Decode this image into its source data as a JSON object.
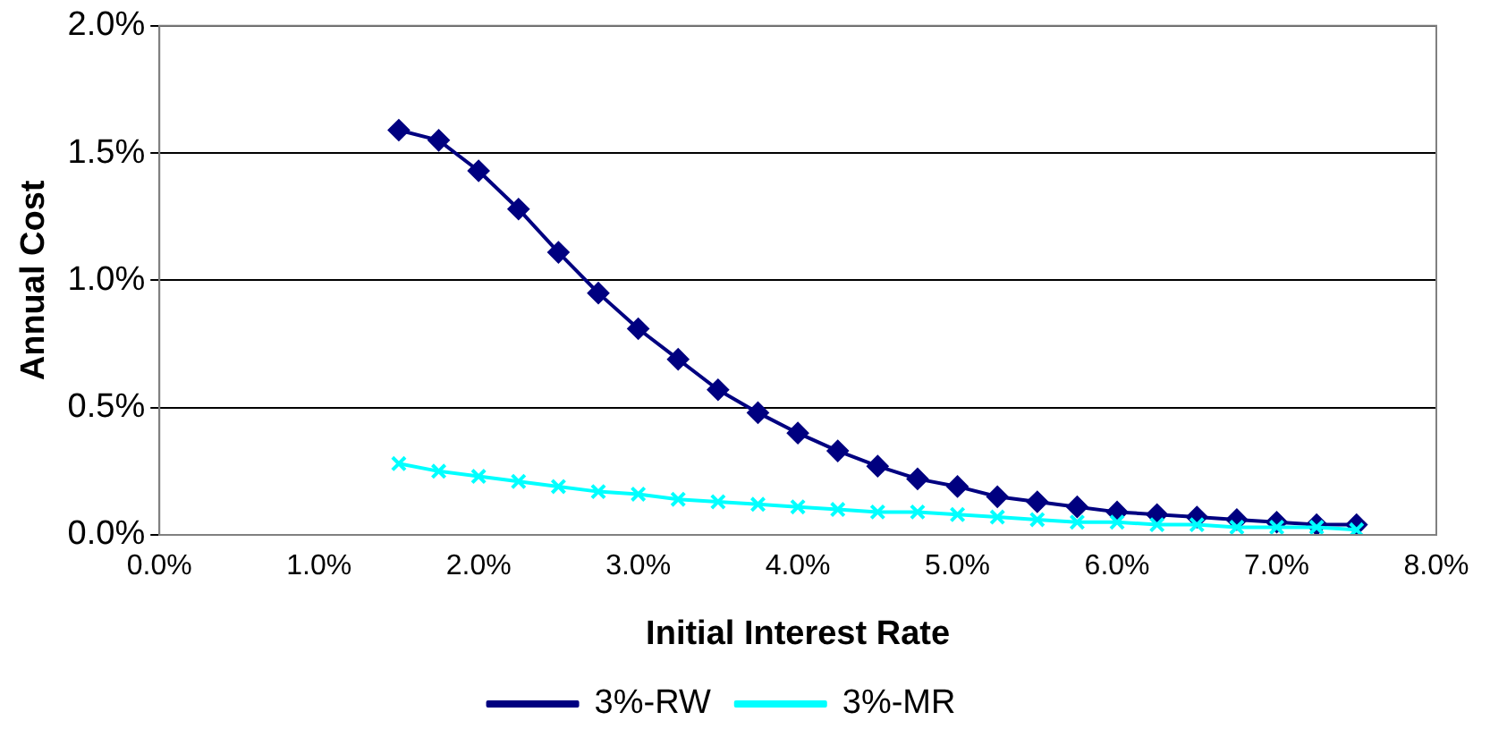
{
  "chart_data": {
    "type": "line",
    "xlabel": "Initial Interest Rate",
    "ylabel": "Annual Cost",
    "x": [
      1.5,
      1.75,
      2.0,
      2.25,
      2.5,
      2.75,
      3.0,
      3.25,
      3.5,
      3.75,
      4.0,
      4.25,
      4.5,
      4.75,
      5.0,
      5.25,
      5.5,
      5.75,
      6.0,
      6.25,
      6.5,
      6.75,
      7.0,
      7.25,
      7.5
    ],
    "series": [
      {
        "name": "3%-RW",
        "color": "#000080",
        "marker": "diamond",
        "values": [
          1.59,
          1.55,
          1.43,
          1.28,
          1.11,
          0.95,
          0.81,
          0.69,
          0.57,
          0.48,
          0.4,
          0.33,
          0.27,
          0.22,
          0.19,
          0.15,
          0.13,
          0.11,
          0.09,
          0.08,
          0.07,
          0.06,
          0.05,
          0.04,
          0.04
        ]
      },
      {
        "name": "3%-MR",
        "color": "#00ffff",
        "marker": "cross",
        "values": [
          0.28,
          0.25,
          0.23,
          0.21,
          0.19,
          0.17,
          0.16,
          0.14,
          0.13,
          0.12,
          0.11,
          0.1,
          0.09,
          0.09,
          0.08,
          0.07,
          0.06,
          0.05,
          0.05,
          0.04,
          0.04,
          0.03,
          0.03,
          0.03,
          0.02
        ]
      }
    ],
    "xlim": [
      0,
      8
    ],
    "xticks": [
      {
        "value": 0,
        "label": "0.0%"
      },
      {
        "value": 1,
        "label": "1.0%"
      },
      {
        "value": 2,
        "label": "2.0%"
      },
      {
        "value": 3,
        "label": "3.0%"
      },
      {
        "value": 4,
        "label": "4.0%"
      },
      {
        "value": 5,
        "label": "5.0%"
      },
      {
        "value": 6,
        "label": "6.0%"
      },
      {
        "value": 7,
        "label": "7.0%"
      },
      {
        "value": 8,
        "label": "8.0%"
      }
    ],
    "ylim": [
      0,
      2
    ],
    "yticks": [
      {
        "value": 0,
        "label": "0.0%"
      },
      {
        "value": 0.5,
        "label": "0.5%"
      },
      {
        "value": 1,
        "label": "1.0%"
      },
      {
        "value": 1.5,
        "label": "1.5%"
      },
      {
        "value": 2,
        "label": "2.0%"
      }
    ],
    "grid": "y",
    "legend": "bottom",
    "line_style": "solid"
  }
}
